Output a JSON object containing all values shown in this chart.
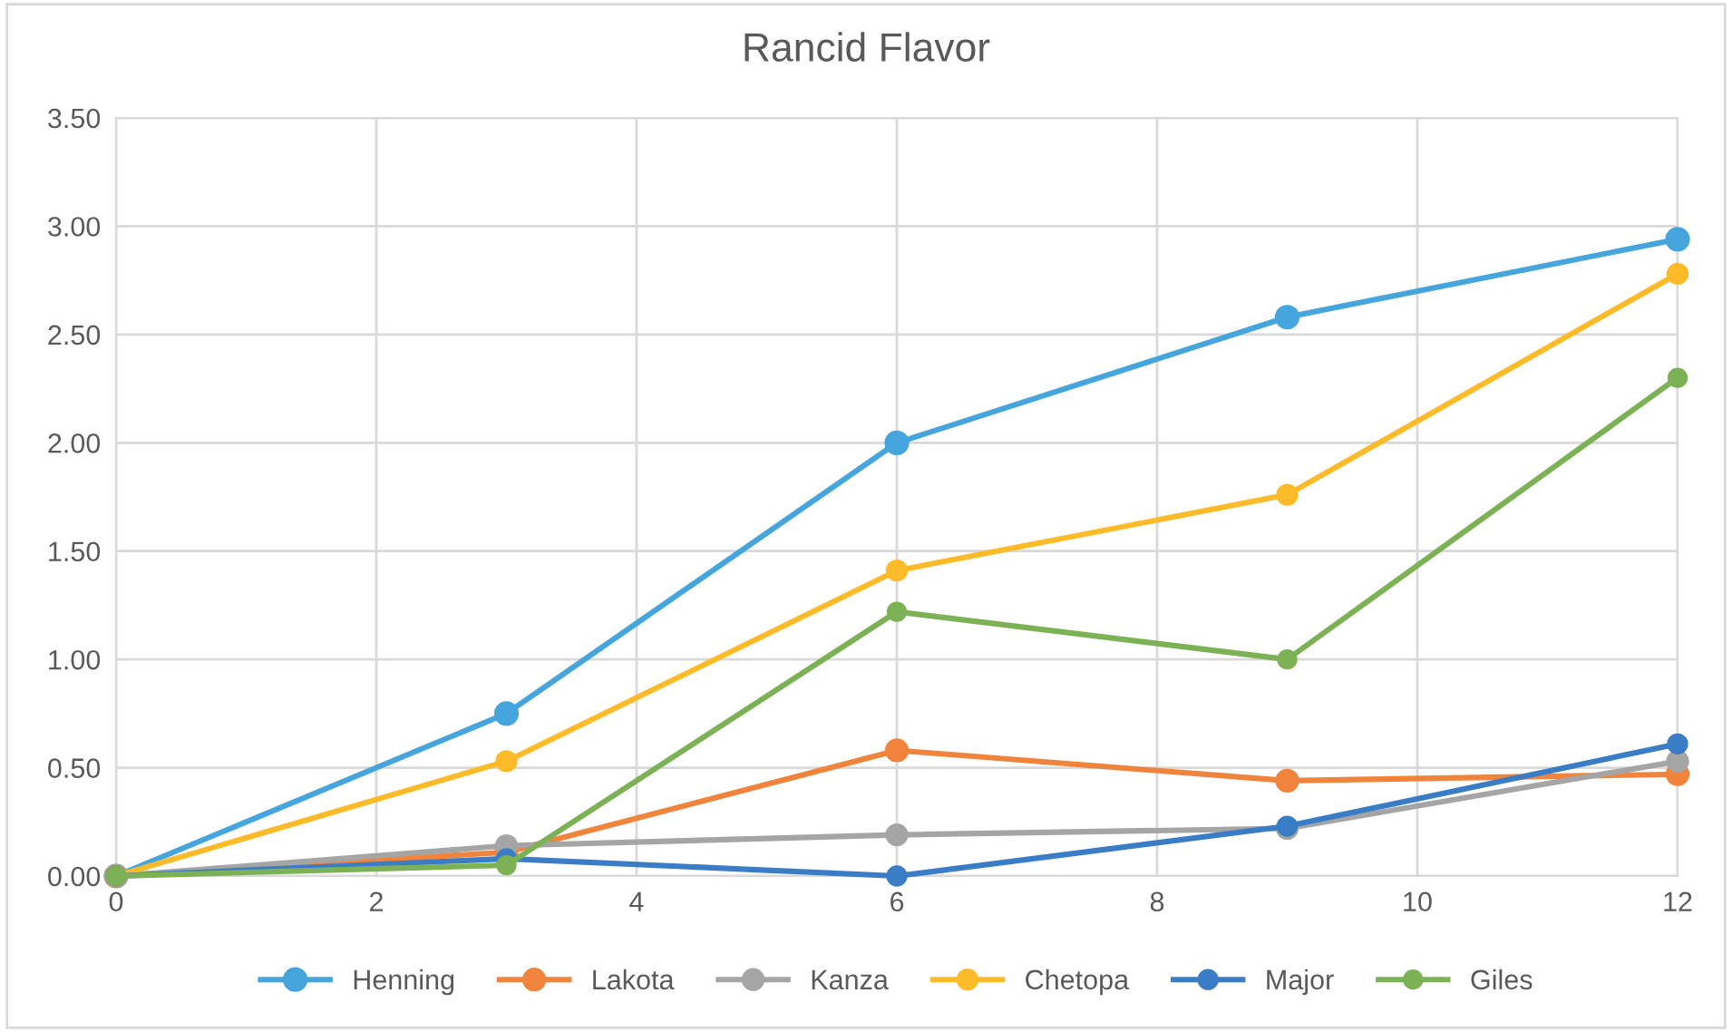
{
  "chart_data": {
    "type": "line",
    "title": "Rancid Flavor",
    "x": [
      0,
      3,
      6,
      9,
      12
    ],
    "series": [
      {
        "name": "Henning",
        "color": "#45a5dc",
        "values": [
          0,
          0.75,
          2.0,
          2.58,
          2.94
        ]
      },
      {
        "name": "Lakota",
        "color": "#f0843c",
        "values": [
          0,
          0.11,
          0.58,
          0.44,
          0.47
        ]
      },
      {
        "name": "Kanza",
        "color": "#a5a5a5",
        "values": [
          0,
          0.14,
          0.19,
          0.22,
          0.53
        ]
      },
      {
        "name": "Chetopa",
        "color": "#fdbb2a",
        "values": [
          0,
          0.53,
          1.41,
          1.76,
          2.78
        ]
      },
      {
        "name": "Major",
        "color": "#3a7dc6",
        "values": [
          0,
          0.08,
          0.0,
          0.23,
          0.61
        ]
      },
      {
        "name": "Giles",
        "color": "#7cb255",
        "values": [
          0,
          0.05,
          1.22,
          1.0,
          2.3
        ]
      }
    ],
    "xlim": [
      0,
      12
    ],
    "xticks": [
      0,
      2,
      4,
      6,
      8,
      10,
      12
    ],
    "ylim": [
      0,
      3.5
    ],
    "yticks": [
      {
        "value": 0,
        "label": "0.00"
      },
      {
        "value": 0.5,
        "label": "0.50"
      },
      {
        "value": 1,
        "label": "1.00"
      },
      {
        "value": 1.5,
        "label": "1.50"
      },
      {
        "value": 2,
        "label": "2.00"
      },
      {
        "value": 2.5,
        "label": "2.50"
      },
      {
        "value": 3,
        "label": "3.00"
      },
      {
        "value": 3.5,
        "label": "3.50"
      }
    ],
    "grid": true,
    "legend": "bottom",
    "marker": "circle",
    "line_style": "solid"
  }
}
